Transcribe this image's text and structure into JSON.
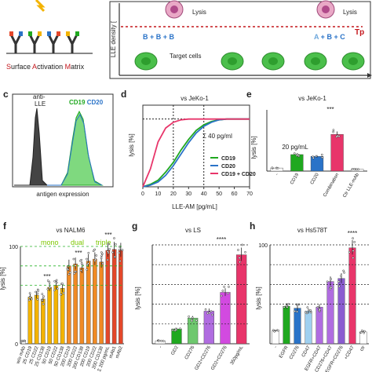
{
  "top": {
    "sam_title": [
      "S",
      "urface ",
      "A",
      "ctivation ",
      "M",
      "atrix"
    ],
    "lysis_label": "Lysis",
    "lysis_label_2": "Lysis",
    "yaxis": "LLE density [",
    "tp": "Tp",
    "formula_1": [
      "B",
      " + ",
      "B",
      " + ",
      "B"
    ],
    "formula_2": [
      "A",
      " + ",
      "B",
      " + ",
      "C"
    ],
    "target_cells": "Target cells"
  },
  "colors": {
    "cd19": "#1fa81f",
    "cd20": "#2a73c8",
    "combo": "#e8356a",
    "ctrl": "#777777",
    "mono": "#f3b300",
    "dual": "#f08a24",
    "triple": "#e3472a",
    "red": "#c4161c",
    "green_line": "#27b327"
  },
  "panels": {
    "c": {
      "letter": "c",
      "anti_lle": "anti-\nLLE",
      "cd19": "CD19",
      "cd20": "CD20",
      "xlabel": "antigen expression"
    },
    "d": {
      "letter": "d",
      "title": "vs JeKo-1",
      "ylabel": "lysis [%]",
      "xlabel": "LLE-AM [pg/mL]",
      "annotation": "Σ 40 pg/ml",
      "legend": [
        "CD19",
        "CD20",
        "CD19 + CD20"
      ]
    },
    "e": {
      "letter": "e",
      "title": "vs JeKo-1",
      "ylabel": "lysis [%]",
      "annotation": "20 pg/mL",
      "sig": "***"
    },
    "f": {
      "letter": "f",
      "title": "vs NALM6",
      "ylabel": "lysis [%]",
      "groups": [
        "mono",
        "dual",
        "triple"
      ],
      "sig": [
        "***",
        "***",
        "***"
      ]
    },
    "g": {
      "letter": "g",
      "title": "vs LS",
      "ylabel": "lysis [%]",
      "sig": "****"
    },
    "h": {
      "letter": "h",
      "title": "vs Hs578T",
      "ylabel": "lysis [%]",
      "sig": "****"
    }
  },
  "chart_data": [
    {
      "panel": "d",
      "type": "line",
      "xlabel": "LLE-AM [pg/mL]",
      "ylabel": "lysis [%]",
      "xlim": [
        0,
        70
      ],
      "x_ticks": [
        0,
        10,
        20,
        30,
        40,
        50,
        60,
        70
      ],
      "series": [
        {
          "name": "CD19",
          "x": [
            0,
            5,
            10,
            15,
            20,
            25,
            30,
            35,
            40,
            45,
            50,
            55,
            60,
            65,
            70
          ],
          "values": [
            0,
            3,
            8,
            18,
            30,
            45,
            58,
            69,
            76,
            80,
            82,
            83,
            83,
            83,
            83
          ]
        },
        {
          "name": "CD20",
          "x": [
            0,
            5,
            10,
            15,
            20,
            25,
            30,
            35,
            40,
            45,
            50,
            55,
            60,
            65,
            70
          ],
          "values": [
            0,
            2,
            6,
            14,
            26,
            40,
            54,
            66,
            74,
            79,
            82,
            83,
            83,
            83,
            83
          ]
        },
        {
          "name": "CD19 + CD20",
          "x": [
            0,
            5,
            10,
            15,
            20,
            25,
            30,
            35,
            40,
            45,
            50,
            55,
            60,
            65,
            70
          ],
          "values": [
            0,
            22,
            55,
            72,
            79,
            82,
            83,
            83,
            83,
            83,
            83,
            83,
            83,
            83,
            83
          ]
        }
      ]
    },
    {
      "panel": "e",
      "type": "bar",
      "categories": [
        "-",
        "CD19",
        "CD20",
        "Combination",
        "Ctr LLE-mAb"
      ],
      "values": [
        5,
        27,
        24,
        60,
        3
      ],
      "ylabel": "lysis [%]"
    },
    {
      "panel": "f",
      "type": "bar",
      "ylim": [
        0,
        100
      ],
      "y_ticks": [
        0,
        100
      ],
      "categories": [
        "w/o mAb",
        "25 CD19",
        "25 CD22",
        "25 CD138",
        "50 CD19",
        "50 CD22",
        "50 CD138",
        "200 CD19",
        "200 CD22",
        "200 CD138",
        "200 CD19",
        "200 CD22",
        "200 CD138",
        "Σ 200 pg/mL",
        "mAb1",
        "mAb2"
      ],
      "values": [
        3,
        48,
        50,
        46,
        58,
        60,
        57,
        80,
        82,
        78,
        85,
        87,
        84,
        96,
        97,
        96
      ]
    },
    {
      "panel": "g",
      "type": "bar",
      "ylim": [
        0,
        100
      ],
      "categories": [
        "-",
        "GD2",
        "CD276",
        "GD2+CD276",
        "GD2+CD276",
        "350pg/mL"
      ],
      "values": [
        3,
        15,
        26,
        33,
        52,
        90
      ]
    },
    {
      "panel": "h",
      "type": "bar",
      "ylim": [
        0,
        100
      ],
      "y_ticks": [
        100
      ],
      "categories": [
        "-",
        "EGFR",
        "CD276",
        "CD47",
        "EGFR+CD47",
        "CD276+CD47",
        "EGFR+CD276",
        "+CD47",
        "ctr"
      ],
      "values": [
        13,
        38,
        36,
        33,
        37,
        63,
        66,
        97,
        12
      ]
    }
  ]
}
